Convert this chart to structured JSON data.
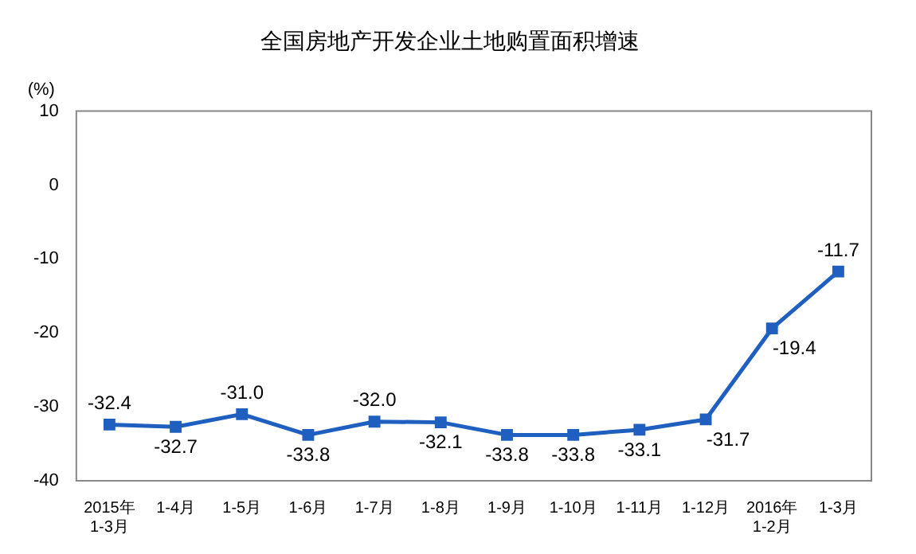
{
  "chart_data": {
    "type": "line",
    "title": "全国房地产开发企业土地购置面积增速",
    "ylabel": "(%)",
    "categories": [
      "2015年 1-3月",
      "1-4月",
      "1-5月",
      "1-6月",
      "1-7月",
      "1-8月",
      "1-9月",
      "1-10月",
      "1-11月",
      "1-12月",
      "2016年 1-2月",
      "1-3月"
    ],
    "series": [
      {
        "color": "#1f5fbf",
        "values": [
          -32.4,
          -32.7,
          -31.0,
          -33.8,
          -32.0,
          -32.1,
          -33.8,
          -33.8,
          -33.1,
          -31.7,
          -19.4,
          -11.7
        ],
        "value_labels": [
          "-32.4",
          "-32.7",
          "-31.0",
          "-33.8",
          "-32.0",
          "-32.1",
          "-33.8",
          "-33.8",
          "-33.1",
          "-31.7",
          "-19.4",
          "-11.7"
        ]
      }
    ],
    "ylim": [
      -40,
      10
    ],
    "yticks": [
      -40,
      -30,
      -20,
      -10,
      0,
      10
    ],
    "grid": false,
    "legend": false,
    "marker": "square",
    "line_style": "solid"
  }
}
